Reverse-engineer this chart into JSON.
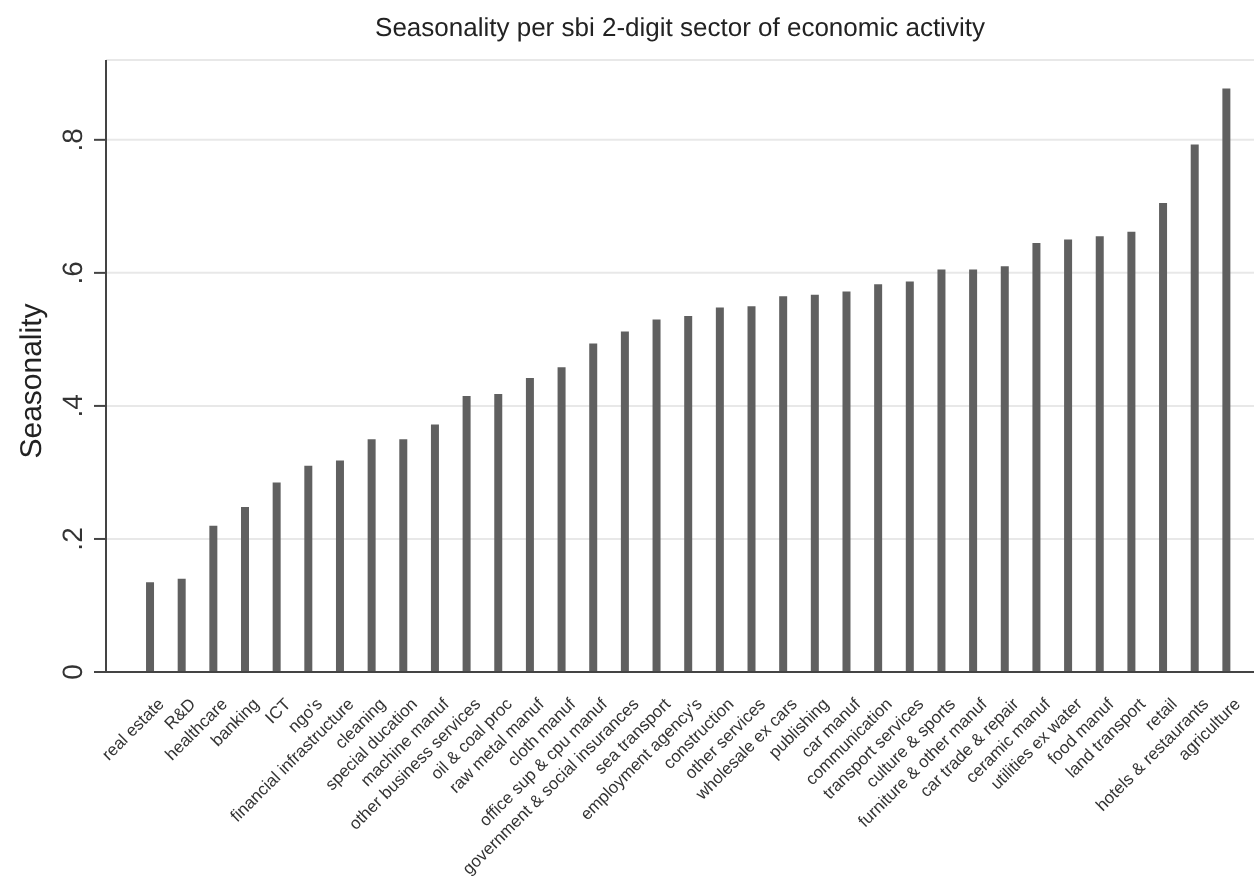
{
  "chart_data": {
    "type": "bar",
    "title": "Seasonality per sbi 2-digit sector of economic activity",
    "ylabel": "Seasonality",
    "categories": [
      "real estate",
      "R&D",
      "healthcare",
      "banking",
      "ICT",
      "ngo's",
      "financial infrastructure",
      "cleaning",
      "special ducation",
      "machine manuf",
      "other business services",
      "oil & coal proc",
      "raw metal manuf",
      "cloth manuf",
      "office sup & cpu manuf",
      "government & social insurances",
      "sea transport",
      "employment agency's",
      "construction",
      "other services",
      "wholesale ex cars",
      "publishing",
      "car manuf",
      "communication",
      "transport services",
      "culture & sports",
      "furniture & other manuf",
      "car trade & repair",
      "ceramic manuf",
      "utilities ex water",
      "food manuf",
      "land transport",
      "retail",
      "hotels & restaurants",
      "agriculture"
    ],
    "values": [
      0.135,
      0.14,
      0.22,
      0.248,
      0.285,
      0.31,
      0.318,
      0.35,
      0.35,
      0.372,
      0.415,
      0.418,
      0.442,
      0.458,
      0.494,
      0.512,
      0.53,
      0.535,
      0.548,
      0.55,
      0.565,
      0.567,
      0.572,
      0.583,
      0.587,
      0.605,
      0.605,
      0.61,
      0.645,
      0.65,
      0.655,
      0.662,
      0.705,
      0.793,
      0.877
    ],
    "color": "#606060",
    "ylim": [
      0,
      0.92
    ],
    "yticks": [
      {
        "value": 0,
        "label": "0"
      },
      {
        "value": 0.2,
        "label": ".2"
      },
      {
        "value": 0.4,
        "label": ".4"
      },
      {
        "value": 0.6,
        "label": ".6"
      },
      {
        "value": 0.8,
        "label": ".8"
      }
    ],
    "grid": "y"
  }
}
